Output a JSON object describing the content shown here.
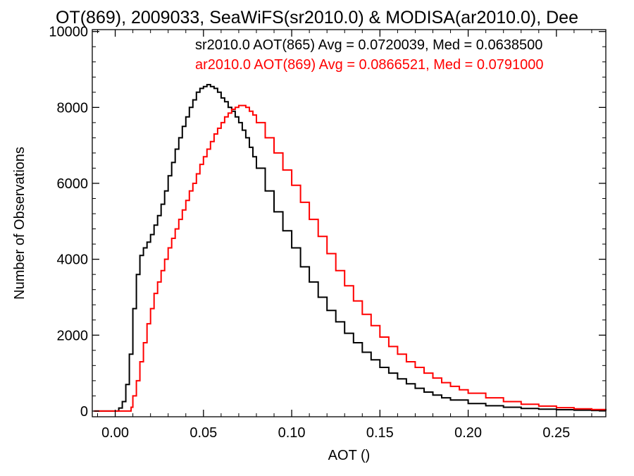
{
  "chart_data": {
    "type": "line",
    "step": true,
    "title": "OT(869), 2009033, SeaWiFS(sr2010.0) & MODISA(ar2010.0), Dee",
    "xlabel": "AOT ()",
    "ylabel": "Number of Observations",
    "xlim": [
      -0.013,
      0.278
    ],
    "ylim": [
      -150,
      10050
    ],
    "x_ticks": [
      0.0,
      0.05,
      0.1,
      0.15,
      0.2,
      0.25
    ],
    "x_tick_labels": [
      "0.00",
      "0.05",
      "0.10",
      "0.15",
      "0.20",
      "0.25"
    ],
    "y_ticks": [
      0,
      2000,
      4000,
      6000,
      8000,
      10000
    ],
    "y_tick_labels": [
      "0",
      "2000",
      "4000",
      "6000",
      "8000",
      "10000"
    ],
    "grid": false,
    "legend_position": "top-right",
    "series": [
      {
        "label": "sr2010.0 AOT(865) Avg = 0.0720039, Med = 0.0638500",
        "color": "#000000",
        "points": [
          [
            -0.012,
            0
          ],
          [
            0.0,
            0
          ],
          [
            0.002,
            80
          ],
          [
            0.004,
            250
          ],
          [
            0.006,
            700
          ],
          [
            0.008,
            1500
          ],
          [
            0.01,
            2700
          ],
          [
            0.012,
            3600
          ],
          [
            0.014,
            4100
          ],
          [
            0.016,
            4300
          ],
          [
            0.018,
            4450
          ],
          [
            0.02,
            4650
          ],
          [
            0.022,
            4900
          ],
          [
            0.024,
            5150
          ],
          [
            0.026,
            5450
          ],
          [
            0.028,
            5800
          ],
          [
            0.03,
            6200
          ],
          [
            0.032,
            6550
          ],
          [
            0.034,
            6900
          ],
          [
            0.036,
            7200
          ],
          [
            0.038,
            7500
          ],
          [
            0.04,
            7750
          ],
          [
            0.042,
            8000
          ],
          [
            0.044,
            8200
          ],
          [
            0.046,
            8400
          ],
          [
            0.048,
            8500
          ],
          [
            0.05,
            8550
          ],
          [
            0.052,
            8600
          ],
          [
            0.054,
            8550
          ],
          [
            0.056,
            8500
          ],
          [
            0.058,
            8400
          ],
          [
            0.06,
            8250
          ],
          [
            0.062,
            8150
          ],
          [
            0.064,
            8000
          ],
          [
            0.066,
            7900
          ],
          [
            0.068,
            7750
          ],
          [
            0.07,
            7600
          ],
          [
            0.072,
            7400
          ],
          [
            0.074,
            7200
          ],
          [
            0.076,
            6950
          ],
          [
            0.078,
            6700
          ],
          [
            0.08,
            6400
          ],
          [
            0.085,
            5800
          ],
          [
            0.09,
            5250
          ],
          [
            0.095,
            4750
          ],
          [
            0.1,
            4300
          ],
          [
            0.105,
            3800
          ],
          [
            0.11,
            3400
          ],
          [
            0.115,
            3000
          ],
          [
            0.12,
            2650
          ],
          [
            0.125,
            2350
          ],
          [
            0.13,
            2050
          ],
          [
            0.135,
            1800
          ],
          [
            0.14,
            1550
          ],
          [
            0.145,
            1350
          ],
          [
            0.15,
            1150
          ],
          [
            0.155,
            1000
          ],
          [
            0.16,
            850
          ],
          [
            0.165,
            720
          ],
          [
            0.17,
            600
          ],
          [
            0.175,
            500
          ],
          [
            0.18,
            420
          ],
          [
            0.185,
            350
          ],
          [
            0.19,
            290
          ],
          [
            0.2,
            200
          ],
          [
            0.21,
            140
          ],
          [
            0.22,
            100
          ],
          [
            0.23,
            70
          ],
          [
            0.24,
            50
          ],
          [
            0.25,
            35
          ],
          [
            0.26,
            25
          ],
          [
            0.27,
            15
          ],
          [
            0.278,
            10
          ]
        ]
      },
      {
        "label": "ar2010.0 AOT(869) Avg = 0.0866521, Med = 0.0791000",
        "color": "#ff0000",
        "points": [
          [
            -0.012,
            0
          ],
          [
            0.008,
            0
          ],
          [
            0.009,
            100
          ],
          [
            0.01,
            400
          ],
          [
            0.012,
            800
          ],
          [
            0.014,
            1300
          ],
          [
            0.016,
            1800
          ],
          [
            0.018,
            2300
          ],
          [
            0.02,
            2700
          ],
          [
            0.022,
            3100
          ],
          [
            0.024,
            3400
          ],
          [
            0.026,
            3700
          ],
          [
            0.028,
            4000
          ],
          [
            0.03,
            4300
          ],
          [
            0.032,
            4550
          ],
          [
            0.034,
            4800
          ],
          [
            0.036,
            5050
          ],
          [
            0.038,
            5300
          ],
          [
            0.04,
            5550
          ],
          [
            0.042,
            5800
          ],
          [
            0.044,
            6000
          ],
          [
            0.046,
            6250
          ],
          [
            0.048,
            6500
          ],
          [
            0.05,
            6700
          ],
          [
            0.052,
            6900
          ],
          [
            0.054,
            7100
          ],
          [
            0.056,
            7300
          ],
          [
            0.058,
            7450
          ],
          [
            0.06,
            7600
          ],
          [
            0.062,
            7750
          ],
          [
            0.064,
            7850
          ],
          [
            0.066,
            7950
          ],
          [
            0.068,
            8000
          ],
          [
            0.07,
            8050
          ],
          [
            0.072,
            8050
          ],
          [
            0.074,
            8000
          ],
          [
            0.076,
            7900
          ],
          [
            0.078,
            7800
          ],
          [
            0.08,
            7600
          ],
          [
            0.085,
            7200
          ],
          [
            0.09,
            6800
          ],
          [
            0.095,
            6350
          ],
          [
            0.1,
            5950
          ],
          [
            0.105,
            5500
          ],
          [
            0.11,
            5050
          ],
          [
            0.115,
            4600
          ],
          [
            0.12,
            4150
          ],
          [
            0.125,
            3700
          ],
          [
            0.13,
            3300
          ],
          [
            0.135,
            2900
          ],
          [
            0.14,
            2550
          ],
          [
            0.145,
            2250
          ],
          [
            0.15,
            1950
          ],
          [
            0.155,
            1700
          ],
          [
            0.16,
            1500
          ],
          [
            0.165,
            1300
          ],
          [
            0.17,
            1150
          ],
          [
            0.175,
            1000
          ],
          [
            0.18,
            870
          ],
          [
            0.185,
            750
          ],
          [
            0.19,
            650
          ],
          [
            0.195,
            560
          ],
          [
            0.2,
            470
          ],
          [
            0.21,
            350
          ],
          [
            0.22,
            250
          ],
          [
            0.23,
            180
          ],
          [
            0.24,
            130
          ],
          [
            0.25,
            90
          ],
          [
            0.26,
            60
          ],
          [
            0.27,
            40
          ],
          [
            0.278,
            30
          ]
        ]
      }
    ]
  }
}
